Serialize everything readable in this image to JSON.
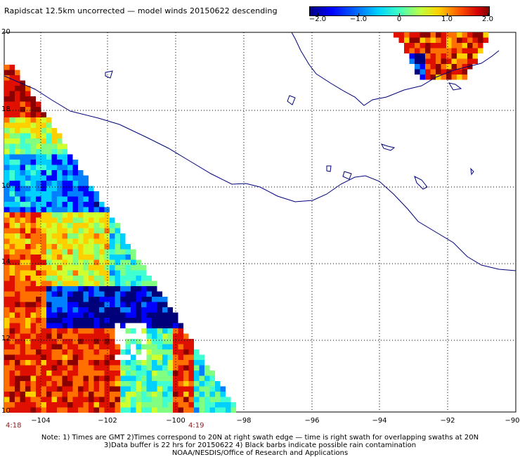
{
  "title": "Rapidscat 12.5km uncorrected — model winds 20150622 descending",
  "colorbar": {
    "ticks": [
      "−2.0",
      "−1.0",
      "0",
      "1.0",
      "2.0"
    ]
  },
  "axes": {
    "lat_labels": [
      "20",
      "18",
      "16",
      "14",
      "12",
      "10"
    ],
    "lon_labels": [
      "−104",
      "−102",
      "−100",
      "−98",
      "−96",
      "−94",
      "−92",
      "−90"
    ]
  },
  "swath_times": {
    "left": "4:18",
    "right": "4:19"
  },
  "notes": {
    "line1": "Note: 1) Times are GMT 2)Times correspond to 20N at right swath edge — time is right swath for overlapping swaths at 20N",
    "line2": "3)Data buffer is 22 hrs for 20150622 4) Black barbs indicate possible rain contamination",
    "line3": "NOAA/NESDIS/Office of Research and Applications"
  },
  "colors": {
    "coastline": "#00007a",
    "grid": "#000000"
  }
}
